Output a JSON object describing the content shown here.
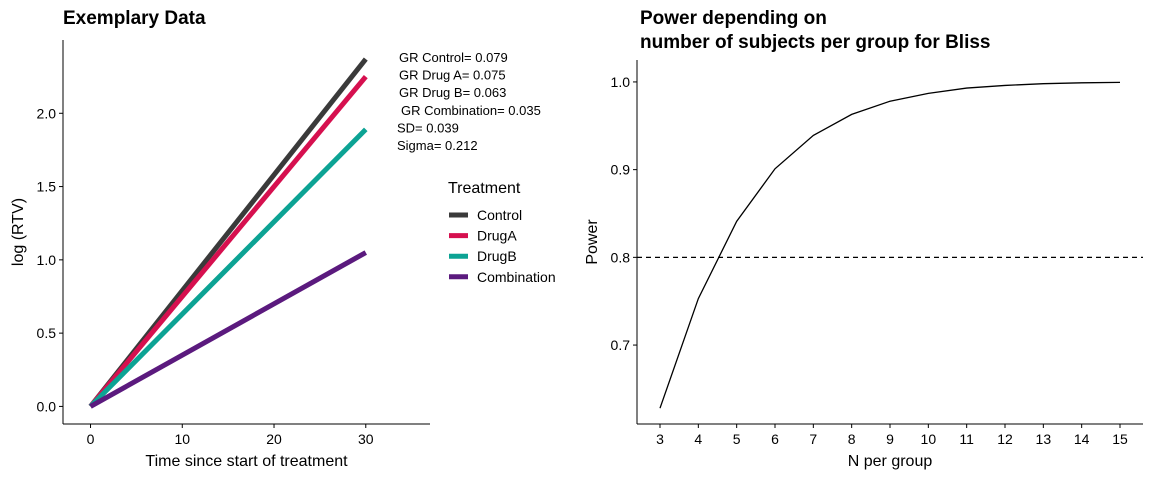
{
  "chart_data": [
    {
      "type": "line",
      "title": "Exemplary Data",
      "xlabel": "Time since start of treatment",
      "ylabel": "log (RTV)",
      "xlim": [
        -3,
        37
      ],
      "ylim": [
        -0.12,
        2.5
      ],
      "x_ticks": [
        0,
        10,
        20,
        30
      ],
      "y_ticks": [
        0.0,
        0.5,
        1.0,
        1.5,
        2.0
      ],
      "x_tick_labels": [
        "0",
        "10",
        "20",
        "30"
      ],
      "y_tick_labels": [
        "0.0",
        "0.5",
        "1.0",
        "1.5",
        "2.0"
      ],
      "grid": false,
      "legend": {
        "title": "Treatment",
        "position": "right"
      },
      "series": [
        {
          "name": "Control",
          "color": "#3a3a3a",
          "x": [
            0,
            30
          ],
          "y": [
            0.0,
            2.37
          ]
        },
        {
          "name": "DrugA",
          "color": "#d6104f",
          "x": [
            0,
            30
          ],
          "y": [
            0.0,
            2.25
          ]
        },
        {
          "name": "DrugB",
          "color": "#0ca394",
          "x": [
            0,
            30
          ],
          "y": [
            0.0,
            1.89
          ]
        },
        {
          "name": "Combination",
          "color": "#5b1a7e",
          "x": [
            0,
            30
          ],
          "y": [
            0.0,
            1.05
          ]
        }
      ],
      "annotations": [
        "GR Control= 0.079",
        "GR Drug A= 0.075",
        "GR Drug B= 0.063",
        "GR Combination= 0.035",
        "SD= 0.039",
        "Sigma= 0.212"
      ]
    },
    {
      "type": "line",
      "title": "Power depending on",
      "title_line2": "number of subjects per group for Bliss",
      "xlabel": "N per group",
      "ylabel": "Power",
      "xlim": [
        2.4,
        15.6
      ],
      "ylim": [
        0.61,
        1.025
      ],
      "x_ticks": [
        3,
        4,
        5,
        6,
        7,
        8,
        9,
        10,
        11,
        12,
        13,
        14,
        15
      ],
      "x_tick_labels": [
        "3",
        "4",
        "5",
        "6",
        "7",
        "8",
        "9",
        "10",
        "11",
        "12",
        "13",
        "14",
        "15"
      ],
      "y_ticks": [
        0.7,
        0.8,
        0.9,
        1.0
      ],
      "y_tick_labels": [
        "0.7",
        "0.8",
        "0.9",
        "1.0"
      ],
      "grid": false,
      "reference_line": {
        "y": 0.8,
        "style": "dashed"
      },
      "series": [
        {
          "color": "#000000",
          "x": [
            3,
            4,
            5,
            6,
            7,
            8,
            9,
            10,
            11,
            12,
            13,
            14,
            15
          ],
          "y": [
            0.628,
            0.753,
            0.841,
            0.901,
            0.939,
            0.963,
            0.978,
            0.987,
            0.993,
            0.996,
            0.998,
            0.999,
            0.9995
          ]
        }
      ]
    }
  ]
}
